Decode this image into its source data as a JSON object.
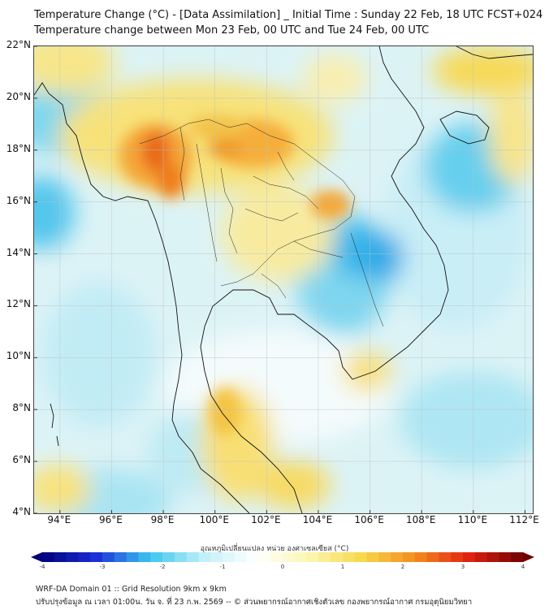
{
  "title": {
    "line1": "Temperature Change (°C) - [Data Assimilation] _ Initial Time : Sunday 22 Feb, 18 UTC FCST+024",
    "line2": "Temperature change between Mon 23 Feb, 00 UTC and Tue 24 Feb, 00 UTC"
  },
  "map": {
    "lat_labels": [
      "22°N",
      "20°N",
      "18°N",
      "16°N",
      "14°N",
      "12°N",
      "10°N",
      "8°N",
      "6°N",
      "4°N"
    ],
    "lon_labels": [
      "94°E",
      "96°E",
      "98°E",
      "100°E",
      "102°E",
      "104°E",
      "106°E",
      "108°E",
      "110°E",
      "112°E"
    ],
    "lat_range": [
      4,
      22
    ],
    "lon_range": [
      93,
      112.3
    ],
    "gridlines": true
  },
  "colorbar": {
    "label": "อุณหภูมิเปลี่ยนแปลง หน่วย องศาเซลเซียส (°C)",
    "min": -4,
    "max": 4,
    "ticks": [
      "-4",
      "-3",
      "-2",
      "-1",
      "0",
      "1",
      "2",
      "3",
      "4"
    ],
    "colors": {
      "dark_blue": "#00007a",
      "blue": "#1a2fd8",
      "cyan": "#3cc4ef",
      "light_cyan": "#bff0f8",
      "white": "#ffffff",
      "light_yellow": "#fbf6b0",
      "yellow": "#f7d84a",
      "orange": "#f48a1c",
      "red": "#e02010",
      "dark_red": "#700000"
    }
  },
  "footer": {
    "line1": "WRF-DA Domain 01 :: Grid Resolution 9km x 9km",
    "line2": "ปรับปรุงข้อมูล ณ เวลา 01:00น. วัน จ. ที่ 23 ก.พ. 2569 -- © ส่วนพยากรณ์อากาศเชิงตัวเลข กองพยากรณ์อากาศ กรมอุตุนิยมวิทยา"
  }
}
